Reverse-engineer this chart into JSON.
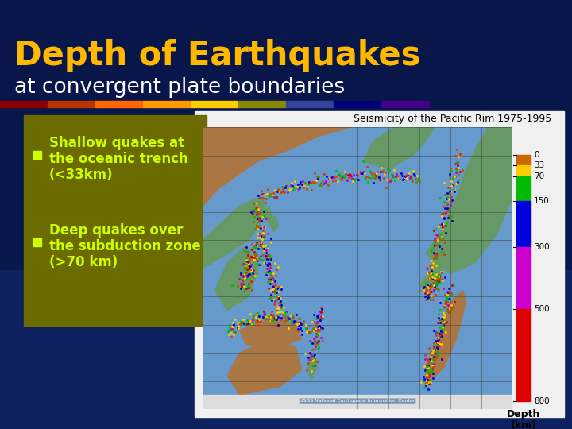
{
  "title_line1": "Depth of Earthquakes",
  "title_line2": "at convergent plate boundaries",
  "map_title": "Seismicity of the Pacific Rim 1975-1995",
  "bullet1_line1": "Shallow quakes at",
  "bullet1_line2": "the oceanic trench",
  "bullet1_line3": "(<33km)",
  "bullet2_line1": "Deep quakes over",
  "bullet2_line2": "the subduction zone",
  "bullet2_line3": "(>70 km)",
  "bg_color": "#0a1a4a",
  "title_color": "#FFB800",
  "subtitle_color": "#FFFFFF",
  "bullet_text_color": "#CCFF00",
  "bullet_box_color": "#6B6B00",
  "stripe_colors": [
    "#8B0000",
    "#BB3300",
    "#FF6600",
    "#FF9900",
    "#FFCC00",
    "#888800",
    "#334499",
    "#000077",
    "#440088"
  ],
  "colorbar_depths": [
    0,
    33,
    70,
    150,
    300,
    500,
    800
  ],
  "colorbar_colors": [
    "#CC6600",
    "#FFCC00",
    "#00BB00",
    "#0000DD",
    "#CC00CC",
    "#DD0000"
  ],
  "depth_label_line1": "Depth",
  "depth_label_line2": "(km)",
  "colorbar_ticks": [
    "0",
    "33",
    "70",
    "150",
    "300",
    "500",
    "800"
  ],
  "bg_gradient_top": "#050f2e",
  "bg_gradient_bottom": "#0a2060",
  "white_panel_color": "#f0f0f0",
  "map_bg_color": "#5588CC"
}
